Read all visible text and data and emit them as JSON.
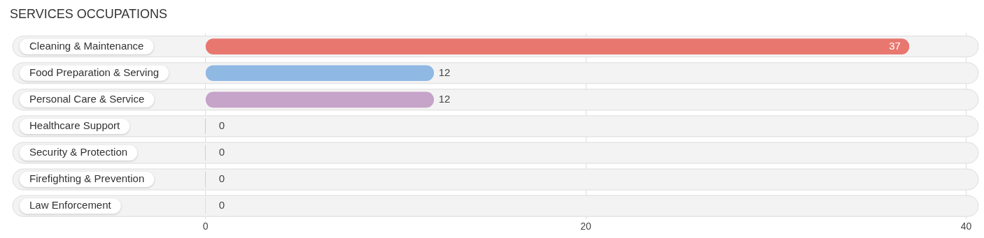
{
  "chart_data": {
    "type": "bar",
    "orientation": "horizontal",
    "title": "SERVICES OCCUPATIONS",
    "categories": [
      "Cleaning & Maintenance",
      "Food Preparation & Serving",
      "Personal Care & Service",
      "Healthcare Support",
      "Security & Protection",
      "Firefighting & Prevention",
      "Law Enforcement"
    ],
    "values": [
      37,
      12,
      12,
      0,
      0,
      0,
      0
    ],
    "colors": [
      "#e8776f",
      "#8fb8e3",
      "#c6a3c9",
      "#7ccdd3",
      "#b3bbe8",
      "#f5a3c0",
      "#f9c89b"
    ],
    "xlim": [
      -10,
      40.5
    ],
    "xticks": [
      0,
      20,
      40
    ],
    "grid": "x",
    "data_labels": true,
    "legend": false
  }
}
